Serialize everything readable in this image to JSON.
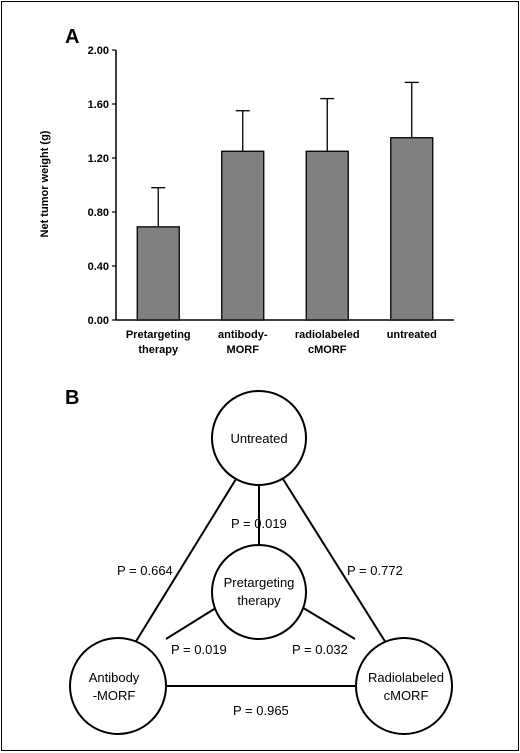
{
  "panels": {
    "a_letter": "A",
    "b_letter": "B"
  },
  "chart_data": {
    "type": "bar",
    "ylabel": "Net tumor weight (g)",
    "xlabel": "",
    "ylim": [
      0,
      2.0
    ],
    "yticks": [
      "0.00",
      "0.40",
      "0.80",
      "1.20",
      "1.60",
      "2.00"
    ],
    "categories": [
      [
        "Pretargeting",
        "therapy"
      ],
      [
        "antibody-",
        "MORF"
      ],
      [
        "radiolabeled",
        "cMORF"
      ],
      [
        "untreated"
      ]
    ],
    "values": [
      0.69,
      1.25,
      1.25,
      1.35
    ],
    "error_upper": [
      0.98,
      1.55,
      1.64,
      1.76
    ],
    "bar_color": "#808080",
    "grid": false
  },
  "diagram": {
    "nodes": {
      "untreated": [
        "Untreated"
      ],
      "pretargeting": [
        "Pretargeting",
        "therapy"
      ],
      "antibody": [
        "Antibody",
        "-MORF"
      ],
      "radiolabeled": [
        "Radiolabeled",
        "cMORF"
      ]
    },
    "edges": {
      "untreated_pretargeting": "P = 0.019",
      "untreated_antibody": "P = 0.664",
      "untreated_radiolabeled": "P = 0.772",
      "pretargeting_antibody": "P = 0.019",
      "pretargeting_radiolabeled": "P = 0.032",
      "antibody_radiolabeled": "P = 0.965"
    }
  }
}
